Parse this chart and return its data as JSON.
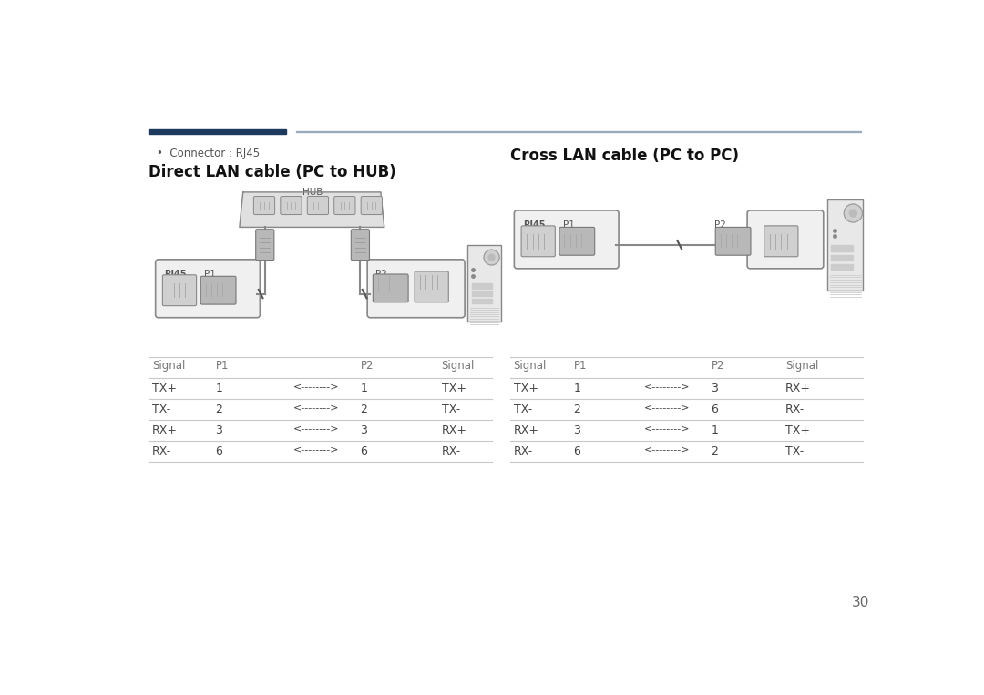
{
  "bg_color": "#ffffff",
  "page_number": "30",
  "header_bar_left_color": "#1e3a5f",
  "header_bar_right_color": "#9aabbd",
  "connector_bullet": "Connector : RJ45",
  "left_title": "Direct LAN cable (PC to HUB)",
  "right_title": "Cross LAN cable (PC to PC)",
  "left_table_headers": [
    "Signal",
    "P1",
    "",
    "P2",
    "Signal"
  ],
  "left_table_rows": [
    [
      "TX+",
      "1",
      "<-------->",
      "1",
      "TX+"
    ],
    [
      "TX-",
      "2",
      "<-------->",
      "2",
      "TX-"
    ],
    [
      "RX+",
      "3",
      "<-------->",
      "3",
      "RX+"
    ],
    [
      "RX-",
      "6",
      "<-------->",
      "6",
      "RX-"
    ]
  ],
  "right_table_headers": [
    "Signal",
    "P1",
    "",
    "P2",
    "Signal"
  ],
  "right_table_rows": [
    [
      "TX+",
      "1",
      "<-------->",
      "3",
      "RX+"
    ],
    [
      "TX-",
      "2",
      "<-------->",
      "6",
      "RX-"
    ],
    [
      "RX+",
      "3",
      "<-------->",
      "1",
      "TX+"
    ],
    [
      "RX-",
      "6",
      "<-------->",
      "2",
      "TX-"
    ]
  ],
  "line_color": "#c8c8c8",
  "text_color": "#444444",
  "title_color": "#111111",
  "hub_color": "#e0e0e0",
  "box_color": "#f0f0f0",
  "port_color": "#d0d0d0",
  "plug_color": "#b8b8b8",
  "cable_color": "#888888",
  "pc_color": "#e8e8e8"
}
